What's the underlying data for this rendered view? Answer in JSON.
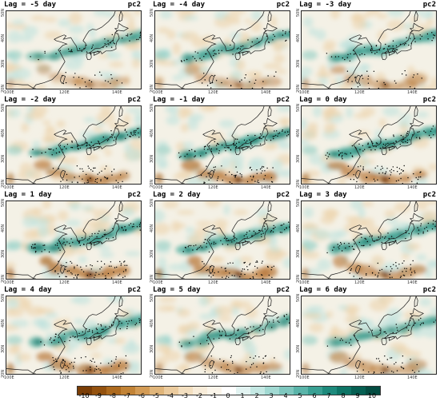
{
  "panels": [
    {
      "lag": "Lag = -5 day",
      "mode": "pc2",
      "intensity": 0.55,
      "south_dry": 0.35
    },
    {
      "lag": "Lag = -4 day",
      "mode": "pc2",
      "intensity": 0.6,
      "south_dry": 0.4
    },
    {
      "lag": "Lag = -3 day",
      "mode": "pc2",
      "intensity": 0.7,
      "south_dry": 0.5
    },
    {
      "lag": "Lag = -2 day",
      "mode": "pc2",
      "intensity": 0.85,
      "south_dry": 0.75
    },
    {
      "lag": "Lag = -1 day",
      "mode": "pc2",
      "intensity": 1.0,
      "south_dry": 0.9
    },
    {
      "lag": "Lag = 0 day",
      "mode": "pc2",
      "intensity": 1.0,
      "south_dry": 0.85
    },
    {
      "lag": "Lag = 1 day",
      "mode": "pc2",
      "intensity": 0.9,
      "south_dry": 1.0
    },
    {
      "lag": "Lag = 2 day",
      "mode": "pc2",
      "intensity": 0.85,
      "south_dry": 0.9
    },
    {
      "lag": "Lag = 3 day",
      "mode": "pc2",
      "intensity": 0.8,
      "south_dry": 0.7
    },
    {
      "lag": "Lag = 4 day",
      "mode": "pc2",
      "intensity": 0.7,
      "south_dry": 0.85
    },
    {
      "lag": "Lag = 5 day",
      "mode": "pc2",
      "intensity": 0.55,
      "south_dry": 0.6
    },
    {
      "lag": "Lag = 6 day",
      "mode": "pc2",
      "intensity": 0.45,
      "south_dry": 0.5
    }
  ],
  "axes": {
    "lat_labels": [
      "50N",
      "40N",
      "30N",
      "20N"
    ],
    "lon_labels": [
      "100E",
      "120E",
      "140E"
    ]
  },
  "colorbar": {
    "ticks": [
      "-10",
      "-9",
      "-8",
      "-7",
      "-6",
      "-5",
      "-4",
      "-3",
      "-2",
      "-1",
      "0",
      "1",
      "2",
      "3",
      "4",
      "5",
      "6",
      "7",
      "8",
      "9",
      "10"
    ],
    "colors": [
      "#7a3d06",
      "#94520f",
      "#ad6a1e",
      "#c28336",
      "#d39b55",
      "#e0b57a",
      "#ebcb9e",
      "#f3dfc0",
      "#f8ecd9",
      "#fbf5ea",
      "#ffffff",
      "#e2f3f1",
      "#c4e8e3",
      "#a1d9d2",
      "#7ec7be",
      "#5ab4a9",
      "#39a093",
      "#1d8a7c",
      "#0d7566",
      "#055f52",
      "#034c41"
    ]
  }
}
